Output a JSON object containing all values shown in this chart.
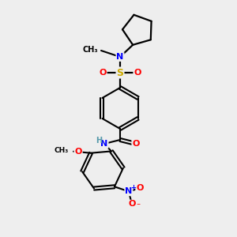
{
  "bg_color": "#eeeeee",
  "atom_colors": {
    "C": "#000000",
    "N": "#0000ff",
    "O": "#ff0000",
    "S": "#ccaa00",
    "H": "#5599aa"
  },
  "bond_color": "#000000",
  "lw": 1.6
}
